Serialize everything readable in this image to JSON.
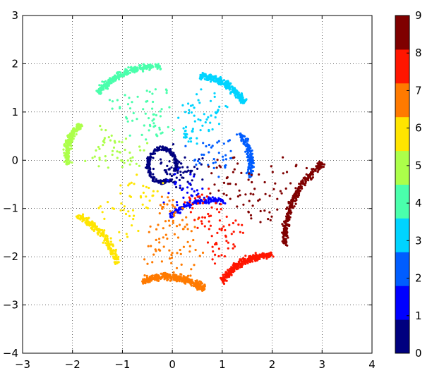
{
  "chart_data": {
    "type": "scatter",
    "title": "",
    "xlabel": "",
    "ylabel": "",
    "xlim": [
      -3,
      4
    ],
    "ylim": [
      -4,
      3
    ],
    "x_ticks": [
      -3,
      -2,
      -1,
      0,
      1,
      2,
      3,
      4
    ],
    "y_ticks": [
      -4,
      -3,
      -2,
      -1,
      0,
      1,
      2,
      3
    ],
    "x_tick_labels": [
      "−3",
      "−2",
      "−1",
      "0",
      "1",
      "2",
      "3",
      "4"
    ],
    "y_tick_labels": [
      "−4",
      "−3",
      "−2",
      "−1",
      "0",
      "1",
      "2",
      "3"
    ],
    "grid": true,
    "grid_style": "dotted",
    "colorbar": {
      "ticks": [
        0,
        1,
        2,
        3,
        4,
        5,
        6,
        7,
        8,
        9
      ],
      "tick_labels": [
        "0",
        "1",
        "2",
        "3",
        "4",
        "5",
        "6",
        "7",
        "8",
        "9"
      ],
      "colors": [
        "#00007f",
        "#0000ff",
        "#005dff",
        "#00d4ff",
        "#4affac",
        "#acff4a",
        "#ffe500",
        "#ff7a00",
        "#ff1600",
        "#7f0000"
      ]
    },
    "clusters": [
      {
        "label": 0,
        "description": "ring",
        "center": [
          -0.2,
          -0.1
        ],
        "radius": 0.35,
        "count": 320
      },
      {
        "label": 1,
        "description": "arc",
        "from": [
          -0.05,
          -1.15
        ],
        "to": [
          1.05,
          -0.85
        ],
        "count": 160
      },
      {
        "label": 2,
        "description": "arc",
        "from": [
          1.35,
          0.55
        ],
        "to": [
          1.55,
          -0.35
        ],
        "count": 180
      },
      {
        "label": 3,
        "description": "arc",
        "from": [
          0.55,
          1.75
        ],
        "to": [
          1.45,
          1.2
        ],
        "count": 320
      },
      {
        "label": 4,
        "description": "arc",
        "from": [
          -1.5,
          1.4
        ],
        "to": [
          -0.25,
          1.95
        ],
        "count": 300
      },
      {
        "label": 5,
        "description": "arc",
        "from": [
          -2.1,
          -0.1
        ],
        "to": [
          -1.85,
          0.75
        ],
        "count": 260
      },
      {
        "label": 6,
        "description": "arc",
        "from": [
          -1.9,
          -1.15
        ],
        "to": [
          -1.1,
          -2.15
        ],
        "count": 240
      },
      {
        "label": 7,
        "description": "arc",
        "from": [
          -0.6,
          -2.5
        ],
        "to": [
          0.65,
          -2.65
        ],
        "count": 420
      },
      {
        "label": 8,
        "description": "arc",
        "from": [
          1.0,
          -2.5
        ],
        "to": [
          2.0,
          -1.95
        ],
        "count": 380
      },
      {
        "label": 9,
        "description": "arc",
        "from": [
          2.25,
          -1.75
        ],
        "to": [
          3.0,
          -0.05
        ],
        "count": 360
      }
    ]
  }
}
